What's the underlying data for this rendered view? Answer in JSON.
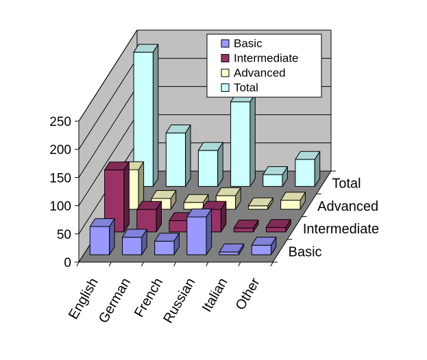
{
  "chart_data": {
    "type": "bar",
    "subtype": "3d-column",
    "title": "",
    "xlabel": "",
    "ylabel": "",
    "categories": [
      "English",
      "German",
      "French",
      "Russian",
      "Italian",
      "Other"
    ],
    "ylim": [
      0,
      250
    ],
    "yticks": [
      0,
      50,
      100,
      150,
      200,
      250
    ],
    "grid": true,
    "legend_position": "top-right",
    "series": [
      {
        "name": "Basic",
        "color": "#9999ff",
        "values": [
          50,
          31,
          24,
          67,
          5,
          17
        ]
      },
      {
        "name": "Intermediate",
        "color": "#993366",
        "values": [
          110,
          40,
          20,
          40,
          7,
          8
        ]
      },
      {
        "name": "Advanced",
        "color": "#ffffcc",
        "values": [
          70,
          19,
          12,
          24,
          6,
          16
        ]
      },
      {
        "name": "Total",
        "color": "#ccffff",
        "values": [
          238,
          95,
          64,
          150,
          21,
          48
        ]
      }
    ],
    "depth_labels": [
      "Basic",
      "Intermediate",
      "Advanced",
      "Total"
    ]
  }
}
